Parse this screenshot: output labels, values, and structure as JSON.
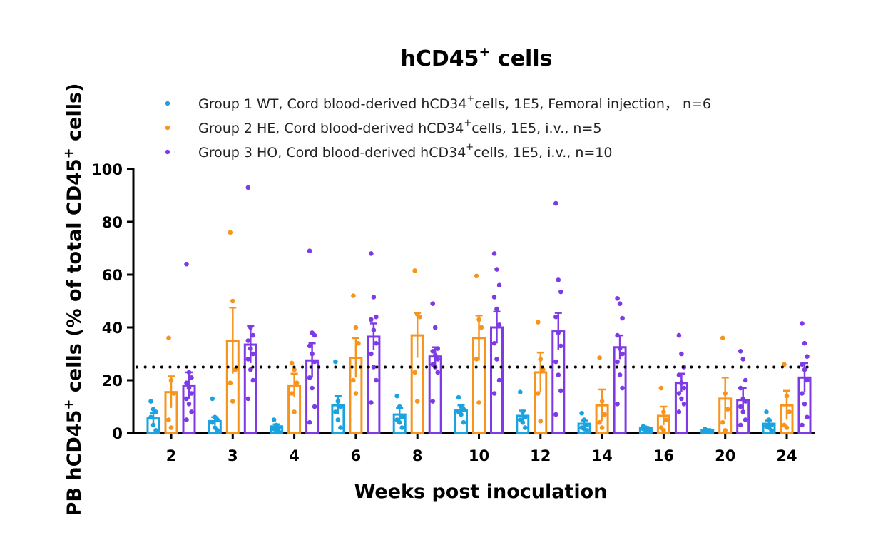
{
  "chart_data": {
    "type": "bar",
    "title": "hCD45",
    "title_sup": "+",
    "title_rest": " cells",
    "xlabel": "Weeks post inoculation",
    "ylabel_parts": [
      "PB hCD45",
      "+",
      " cells  (% of total CD45",
      "+",
      " cells)"
    ],
    "ylim": [
      0,
      100
    ],
    "yticks": [
      "0",
      "20",
      "40",
      "60",
      "80",
      "100"
    ],
    "reference_line": 25,
    "categories": [
      "2",
      "3",
      "4",
      "6",
      "8",
      "10",
      "12",
      "14",
      "16",
      "20",
      "24"
    ],
    "series": [
      {
        "name": "Group 1 WT, Cord blood-derived hCD34+cells, 1E5, Femoral injection， n=6",
        "legend_parts": [
          "Group 1 WT, Cord blood-derived hCD34",
          "+",
          "cells, 1E5, Femoral injection， n=6"
        ],
        "color": "#1ba3df",
        "values": [
          5.5,
          4.5,
          2.5,
          10.5,
          7.0,
          8.5,
          6.5,
          3.5,
          1.8,
          1.0,
          3.5
        ],
        "errors": [
          2.0,
          1.5,
          0.8,
          3.5,
          2.5,
          2.0,
          2.0,
          1.2,
          0.5,
          0.4,
          1.2
        ],
        "points": [
          [
            12,
            9,
            8,
            6,
            3,
            1
          ],
          [
            13,
            6,
            5,
            4,
            2,
            1
          ],
          [
            5,
            3,
            2,
            1.5,
            1,
            0.5
          ],
          [
            27,
            12,
            10,
            8,
            5,
            2
          ],
          [
            14,
            10,
            6,
            5,
            4,
            2
          ],
          [
            13.5,
            10,
            9,
            8,
            7,
            4
          ],
          [
            15.5,
            8,
            6,
            5,
            4,
            2
          ],
          [
            7.5,
            5,
            3,
            2,
            1.5,
            1
          ],
          [
            2.5,
            2,
            1.5,
            1.5,
            1,
            0.5
          ],
          [
            1.5,
            1,
            1,
            0.8,
            0.5,
            0.3
          ],
          [
            8,
            5,
            3,
            2.5,
            2,
            1
          ]
        ]
      },
      {
        "name": "Group 2 HE, Cord blood-derived hCD34+cells, 1E5, i.v., n=5",
        "legend_parts": [
          "Group 2 HE, Cord blood-derived hCD34",
          "+",
          "cells, 1E5, i.v., n=5"
        ],
        "color": "#f7941d",
        "values": [
          15.5,
          35.0,
          18.0,
          28.5,
          37.0,
          36.0,
          23.0,
          10.5,
          6.5,
          13.0,
          10.5
        ],
        "errors": [
          6.0,
          12.5,
          4.5,
          7.5,
          8.5,
          8.5,
          7.5,
          6.0,
          3.5,
          8.0,
          5.5
        ],
        "points": [
          [
            36,
            20,
            15,
            5,
            2
          ],
          [
            76,
            50,
            24,
            19,
            12
          ],
          [
            26.5,
            24,
            19,
            15,
            8
          ],
          [
            52,
            40,
            34,
            20,
            15
          ],
          [
            61.5,
            45,
            44,
            23,
            12
          ],
          [
            59.5,
            43,
            40,
            28,
            11.5
          ],
          [
            42,
            28,
            24,
            15,
            4.5
          ],
          [
            28.5,
            12,
            7,
            4,
            2
          ],
          [
            17,
            8,
            5,
            2,
            1
          ],
          [
            36,
            15,
            9,
            4,
            1
          ],
          [
            26,
            14,
            8,
            3,
            2
          ]
        ]
      },
      {
        "name": "Group 3 HO, Cord blood-derived hCD34+cells, 1E5, i.v., n=10",
        "legend_parts": [
          "Group 3 HO, Cord blood-derived hCD34",
          "+",
          "cells, 1E5, i.v., n=10"
        ],
        "color": "#7e3be5",
        "values": [
          18.0,
          33.5,
          27.5,
          36.5,
          29.0,
          40.0,
          38.5,
          32.5,
          19.0,
          12.5,
          21.0
        ],
        "errors": [
          5.0,
          7.0,
          6.5,
          5.0,
          3.5,
          6.0,
          7.0,
          4.5,
          3.5,
          4.5,
          5.5
        ],
        "points": [
          [
            64,
            23,
            21,
            19,
            17,
            15,
            13,
            11,
            8,
            5
          ],
          [
            93,
            40,
            37,
            35,
            32,
            30,
            28,
            24,
            20,
            13
          ],
          [
            69,
            38,
            37,
            33,
            30,
            27,
            21,
            17,
            10,
            4
          ],
          [
            68,
            51.5,
            44,
            43,
            39,
            34,
            30,
            25,
            20,
            11.5
          ],
          [
            49,
            40,
            32,
            31,
            29.5,
            28,
            26,
            25,
            23,
            12
          ],
          [
            68,
            62,
            56,
            51.5,
            47,
            41,
            34,
            28,
            20,
            15
          ],
          [
            87,
            58,
            53.5,
            44,
            38,
            33,
            27,
            22,
            16,
            7
          ],
          [
            51,
            49,
            43.5,
            37,
            32,
            30,
            27,
            22,
            17,
            11
          ],
          [
            37,
            30,
            25,
            22,
            19,
            17,
            15,
            13,
            11,
            8
          ],
          [
            31,
            28,
            20,
            17,
            13,
            12,
            10,
            8,
            5,
            3
          ],
          [
            41.5,
            34,
            29,
            26,
            24,
            20,
            15,
            11,
            6,
            3
          ]
        ]
      }
    ]
  }
}
